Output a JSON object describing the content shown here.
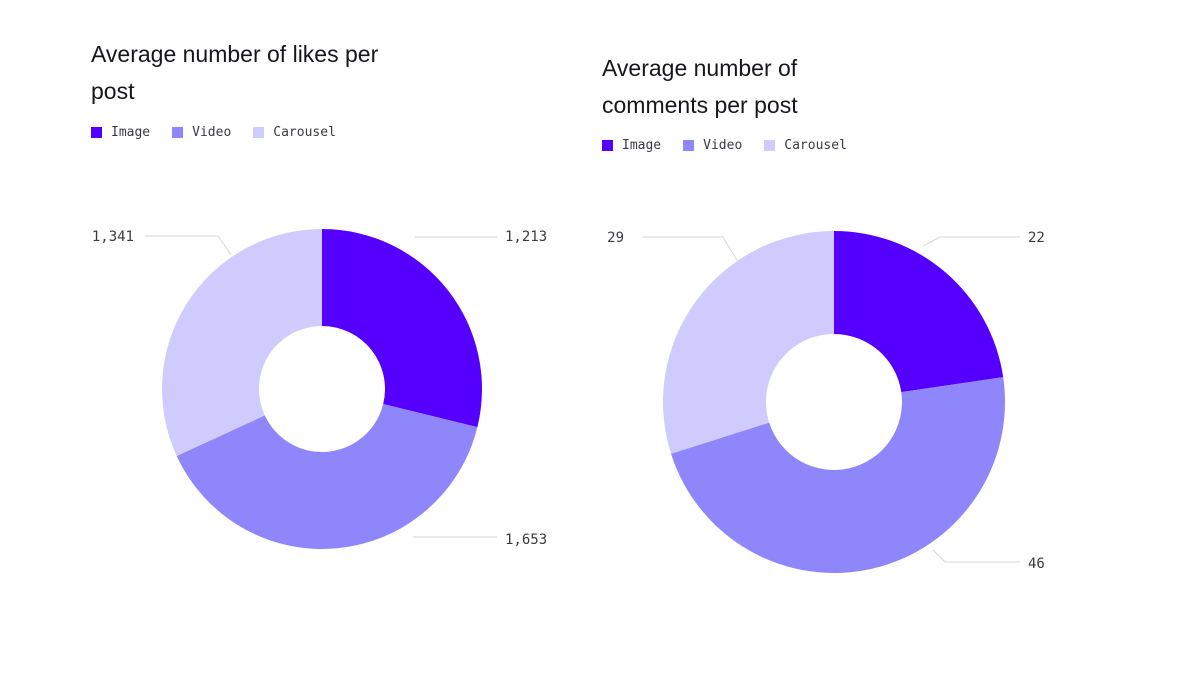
{
  "chart_data": [
    {
      "type": "pie",
      "variant": "donut",
      "title": "Average number of likes per post",
      "categories": [
        "Image",
        "Video",
        "Carousel"
      ],
      "values": [
        1213,
        1653,
        1341
      ],
      "value_labels": [
        "1,213",
        "1,653",
        "1,341"
      ],
      "colors": [
        "#5500ff",
        "#8f86fc",
        "#cfccfd"
      ],
      "legend": "top-left"
    },
    {
      "type": "pie",
      "variant": "donut",
      "title": "Average number of comments per post",
      "categories": [
        "Image",
        "Video",
        "Carousel"
      ],
      "values": [
        22,
        46,
        29
      ],
      "value_labels": [
        "22",
        "46",
        "29"
      ],
      "colors": [
        "#5500ff",
        "#8f86fc",
        "#cfccfd"
      ],
      "legend": "top-left"
    }
  ]
}
